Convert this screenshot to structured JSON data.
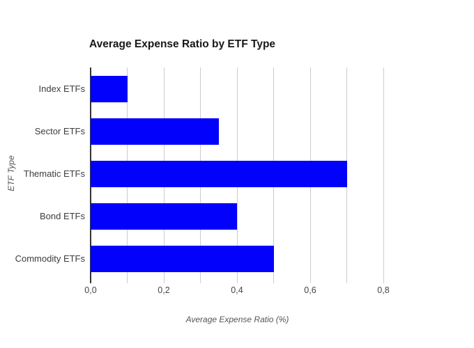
{
  "chart_data": {
    "type": "bar",
    "orientation": "horizontal",
    "title": "Average Expense Ratio by ETF Type",
    "xlabel": "Average Expense Ratio (%)",
    "ylabel": "ETF Type",
    "categories": [
      "Index ETFs",
      "Sector ETFs",
      "Thematic ETFs",
      "Bond ETFs",
      "Commodity ETFs"
    ],
    "values": [
      0.1,
      0.35,
      0.7,
      0.4,
      0.5
    ],
    "xlim": [
      0,
      0.8
    ],
    "x_ticks": [
      {
        "value": 0.0,
        "label": "0,0"
      },
      {
        "value": 0.1,
        "label": ""
      },
      {
        "value": 0.2,
        "label": "0,2"
      },
      {
        "value": 0.3,
        "label": ""
      },
      {
        "value": 0.4,
        "label": "0,4"
      },
      {
        "value": 0.5,
        "label": ""
      },
      {
        "value": 0.6,
        "label": "0,6"
      },
      {
        "value": 0.7,
        "label": ""
      },
      {
        "value": 0.8,
        "label": "0,8"
      }
    ],
    "grid": "vertical gridlines every 0.1, light gray",
    "legend": "none",
    "decimal_separator": ",",
    "colors": {
      "bar": "#0101fc",
      "axis_line": "#333333",
      "gridline": "#cccccc",
      "title": "#181818",
      "category_label": "#3c3c3c",
      "tick_label": "#444444",
      "axis_title": "#555555",
      "background": "#ffffff"
    }
  }
}
